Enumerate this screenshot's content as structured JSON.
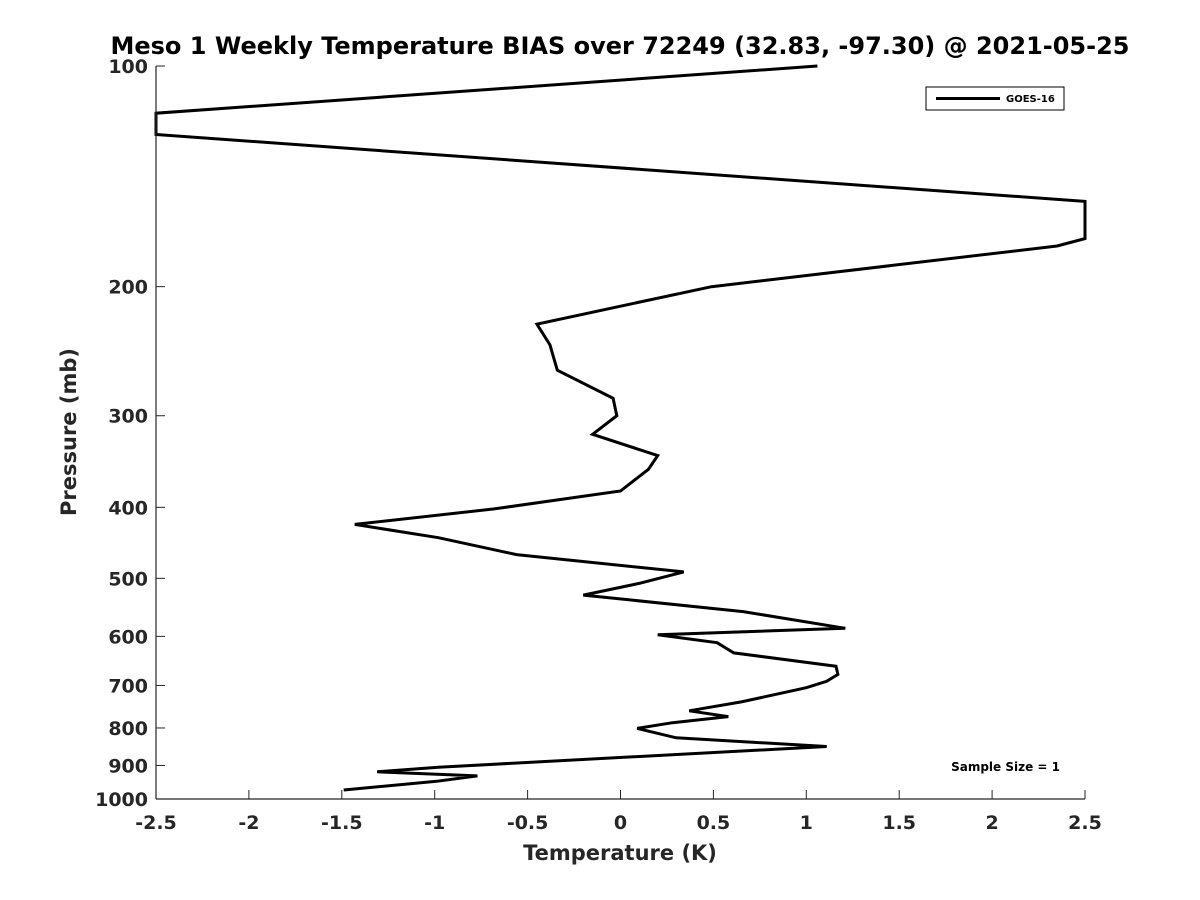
{
  "chart_data": {
    "type": "line",
    "title": "Meso 1 Weekly Temperature BIAS over 72249 (32.83, -97.30) @ 2021-05-25",
    "xlabel": "Temperature (K)",
    "ylabel": "Pressure (mb)",
    "xlim": [
      -2.5,
      2.5
    ],
    "ylim": [
      100,
      1000
    ],
    "y_scale": "log",
    "y_reversed": true,
    "x_ticks": [
      "-2.5",
      "-2",
      "-1.5",
      "-1",
      "-0.5",
      "0",
      "0.5",
      "1",
      "1.5",
      "2",
      "2.5"
    ],
    "y_ticks": [
      "100",
      "200",
      "300",
      "400",
      "500",
      "600",
      "700",
      "800",
      "900",
      "1000"
    ],
    "grid": false,
    "legend_position": "top-right",
    "annotation": "Sample Size = 1",
    "series": [
      {
        "name": "GOES-16",
        "color": "#000000",
        "points": [
          [
            1.06,
            100
          ],
          [
            -2.5,
            116
          ],
          [
            -2.5,
            124
          ],
          [
            2.5,
            153
          ],
          [
            2.5,
            172
          ],
          [
            2.35,
            176
          ],
          [
            0.49,
            200
          ],
          [
            -0.45,
            225
          ],
          [
            -0.38,
            240
          ],
          [
            -0.34,
            260
          ],
          [
            -0.04,
            284
          ],
          [
            -0.02,
            300
          ],
          [
            -0.15,
            318
          ],
          [
            0.2,
            340
          ],
          [
            0.15,
            355
          ],
          [
            0.0,
            380
          ],
          [
            -0.68,
            402
          ],
          [
            -1.43,
            422
          ],
          [
            -0.98,
            440
          ],
          [
            -0.56,
            464
          ],
          [
            0.34,
            490
          ],
          [
            0.1,
            508
          ],
          [
            -0.2,
            527
          ],
          [
            0.66,
            555
          ],
          [
            1.21,
            585
          ],
          [
            0.2,
            597
          ],
          [
            0.52,
            612
          ],
          [
            0.61,
            632
          ],
          [
            1.16,
            659
          ],
          [
            1.17,
            676
          ],
          [
            1.11,
            691
          ],
          [
            1.0,
            705
          ],
          [
            0.65,
            737
          ],
          [
            0.37,
            758
          ],
          [
            0.58,
            772
          ],
          [
            0.28,
            787
          ],
          [
            0.09,
            801
          ],
          [
            0.3,
            825
          ],
          [
            1.11,
            848
          ],
          [
            -0.98,
            905
          ],
          [
            -1.31,
            918
          ],
          [
            -0.77,
            930
          ],
          [
            -0.99,
            946
          ],
          [
            -1.49,
            972
          ]
        ]
      }
    ]
  }
}
